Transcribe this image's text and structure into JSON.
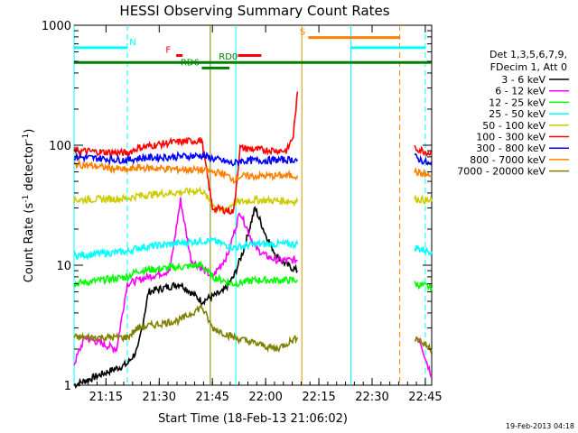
{
  "chart_data": {
    "type": "line",
    "title": "HESSI Observing Summary Count Rates",
    "xlabel": "Start Time (18-Feb-13 21:06:02)",
    "ylabel_main": "Count Rate (s",
    "ylabel_sup1": "-1",
    "ylabel_mid": " detector",
    "ylabel_sup2": "-1",
    "ylabel_end": ")",
    "yscale": "log",
    "ylim": [
      1,
      1000
    ],
    "xlim_minutes": [
      21.1,
      22.78
    ],
    "x_unit": "hours (UT)",
    "x_ticks": [
      {
        "v": 21.25,
        "label": "21:15"
      },
      {
        "v": 21.5,
        "label": "21:30"
      },
      {
        "v": 21.75,
        "label": "21:45"
      },
      {
        "v": 22.0,
        "label": "22:00"
      },
      {
        "v": 22.25,
        "label": "22:15"
      },
      {
        "v": 22.5,
        "label": "22:30"
      },
      {
        "v": 22.75,
        "label": "22:45"
      }
    ],
    "y_ticks": [
      {
        "v": 1,
        "label": "1"
      },
      {
        "v": 10,
        "label": "10"
      },
      {
        "v": 100,
        "label": "100"
      },
      {
        "v": 1000,
        "label": "1000"
      }
    ],
    "legend_header": [
      "Det 1,3,5,6,7,9,",
      "FDecim 1, Att 0"
    ],
    "series": [
      {
        "name": "3 - 6 keV",
        "color": "#000000",
        "segments": [
          [
            [
              21.1,
              1
            ],
            [
              21.35,
              1.5
            ],
            [
              21.4,
              2
            ],
            [
              21.45,
              6
            ],
            [
              21.6,
              7
            ],
            [
              21.7,
              5
            ],
            [
              21.8,
              6
            ],
            [
              21.85,
              8
            ],
            [
              21.9,
              14
            ],
            [
              21.95,
              30
            ],
            [
              22.0,
              18
            ],
            [
              22.05,
              12
            ],
            [
              22.1,
              10
            ],
            [
              22.15,
              9
            ]
          ]
        ]
      },
      {
        "name": "6 - 12 keV",
        "color": "#ff00ff",
        "segments": [
          [
            [
              21.1,
              1.5
            ],
            [
              21.15,
              2.5
            ],
            [
              21.3,
              2
            ],
            [
              21.35,
              7
            ],
            [
              21.45,
              8
            ],
            [
              21.55,
              9
            ],
            [
              21.6,
              35
            ],
            [
              21.65,
              11
            ],
            [
              21.75,
              8
            ],
            [
              21.82,
              12
            ],
            [
              21.88,
              28
            ],
            [
              21.95,
              14
            ],
            [
              22.0,
              12
            ],
            [
              22.05,
              11
            ],
            [
              22.15,
              11
            ]
          ],
          [
            [
              22.72,
              2.5
            ],
            [
              22.76,
              1.5
            ],
            [
              22.78,
              1.2
            ]
          ]
        ]
      },
      {
        "name": "12 - 25 keV",
        "color": "#00ff00",
        "segments": [
          [
            [
              21.1,
              7
            ],
            [
              21.35,
              8
            ],
            [
              21.4,
              9
            ],
            [
              21.7,
              10
            ],
            [
              21.75,
              8
            ],
            [
              21.85,
              7
            ],
            [
              21.95,
              7.5
            ],
            [
              22.15,
              7.5
            ]
          ],
          [
            [
              22.7,
              7
            ],
            [
              22.78,
              6.5
            ]
          ]
        ]
      },
      {
        "name": "25 - 50 keV",
        "color": "#00ffff",
        "segments": [
          [
            [
              21.1,
              12
            ],
            [
              21.35,
              13
            ],
            [
              21.4,
              14
            ],
            [
              21.7,
              16
            ],
            [
              21.75,
              16
            ],
            [
              21.85,
              14
            ],
            [
              21.95,
              15
            ],
            [
              22.15,
              15
            ]
          ],
          [
            [
              22.7,
              14
            ],
            [
              22.78,
              13
            ]
          ]
        ]
      },
      {
        "name": "50 - 100 keV",
        "color": "#cccc00",
        "segments": [
          [
            [
              21.1,
              35
            ],
            [
              21.35,
              36
            ],
            [
              21.4,
              38
            ],
            [
              21.7,
              42
            ],
            [
              21.75,
              32
            ],
            [
              21.8,
              28
            ],
            [
              21.85,
              33
            ],
            [
              21.95,
              35
            ],
            [
              22.15,
              34
            ]
          ],
          [
            [
              22.7,
              36
            ],
            [
              22.78,
              34
            ]
          ]
        ]
      },
      {
        "name": "100 - 300 keV",
        "color": "#ff0000",
        "segments": [
          [
            [
              21.1,
              90
            ],
            [
              21.35,
              86
            ],
            [
              21.4,
              95
            ],
            [
              21.55,
              105
            ],
            [
              21.7,
              110
            ],
            [
              21.75,
              30
            ],
            [
              21.85,
              28
            ],
            [
              21.88,
              95
            ],
            [
              21.95,
              92
            ],
            [
              22.1,
              90
            ],
            [
              22.13,
              120
            ],
            [
              22.15,
              280
            ]
          ],
          [
            [
              22.7,
              95
            ],
            [
              22.78,
              85
            ]
          ]
        ]
      },
      {
        "name": "300 - 800 keV",
        "color": "#0000ff",
        "segments": [
          [
            [
              21.1,
              80
            ],
            [
              21.35,
              75
            ],
            [
              21.4,
              78
            ],
            [
              21.7,
              82
            ],
            [
              21.85,
              70
            ],
            [
              21.88,
              74
            ],
            [
              22.15,
              76
            ]
          ],
          [
            [
              22.7,
              80
            ],
            [
              22.78,
              68
            ]
          ]
        ]
      },
      {
        "name": "800 - 7000 keV",
        "color": "#ff8000",
        "segments": [
          [
            [
              21.1,
              70
            ],
            [
              21.35,
              62
            ],
            [
              21.4,
              65
            ],
            [
              21.7,
              62
            ],
            [
              21.8,
              58
            ],
            [
              21.85,
              52
            ],
            [
              21.88,
              55
            ],
            [
              22.15,
              56
            ]
          ],
          [
            [
              22.7,
              60
            ],
            [
              22.78,
              55
            ]
          ]
        ]
      },
      {
        "name": "7000 - 20000 keV",
        "color": "#808000",
        "segments": [
          [
            [
              21.1,
              2.5
            ],
            [
              21.35,
              2.5
            ],
            [
              21.4,
              3
            ],
            [
              21.6,
              3.5
            ],
            [
              21.7,
              4.5
            ],
            [
              21.75,
              3
            ],
            [
              21.85,
              2.5
            ],
            [
              22.05,
              2
            ],
            [
              22.15,
              2.5
            ]
          ],
          [
            [
              22.7,
              2.5
            ],
            [
              22.78,
              2
            ]
          ]
        ]
      }
    ],
    "flag_bars": [
      {
        "label": "N",
        "color": "#00ffff",
        "y": 650,
        "x0": 21.1,
        "x1": 21.35,
        "label_x": 21.36
      },
      {
        "label": "",
        "color": "#00ffff",
        "y": 650,
        "x0": 22.4,
        "x1": 22.75,
        "label_x": null
      },
      {
        "label": "F",
        "color": "#ff0000",
        "y": 560,
        "x0": 21.58,
        "x1": 21.61,
        "label_x": 21.53
      },
      {
        "label": "",
        "color": "#ff0000",
        "y": 560,
        "x0": 21.87,
        "x1": 21.98,
        "label_x": null
      },
      {
        "label": "RD0",
        "color": "#008000",
        "y": 490,
        "x0": 21.1,
        "x1": 22.78,
        "label_x": 21.78
      },
      {
        "label": "RD6",
        "color": "#008000",
        "y": 440,
        "x0": 21.7,
        "x1": 21.83,
        "label_x": 21.6
      },
      {
        "label": "S",
        "color": "#ff8000",
        "y": 790,
        "x0": 22.2,
        "x1": 22.63,
        "label_x": 22.16
      }
    ],
    "vlines": [
      {
        "x": 21.1,
        "color": "#00ffff",
        "dash": false
      },
      {
        "x": 21.35,
        "color": "#00ffff",
        "dash": true
      },
      {
        "x": 21.74,
        "color": "#808000",
        "dash": false
      },
      {
        "x": 21.86,
        "color": "#00ffff",
        "dash": false
      },
      {
        "x": 22.17,
        "color": "#cc9900",
        "dash": false
      },
      {
        "x": 22.4,
        "color": "#00ffff",
        "dash": false
      },
      {
        "x": 22.63,
        "color": "#ff8000",
        "dash": true
      },
      {
        "x": 22.75,
        "color": "#00ffff",
        "dash": true
      }
    ],
    "grid": false,
    "legend_position": "right"
  },
  "timestamp": "19-Feb-2013 04:18"
}
